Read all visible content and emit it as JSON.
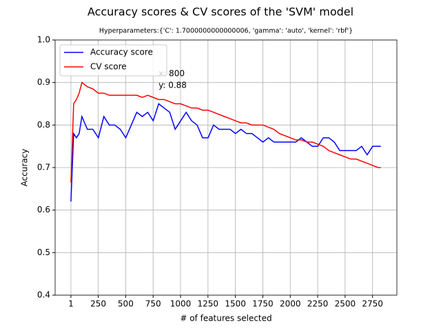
{
  "chart_data": {
    "type": "line",
    "title": "Accuracy scores & CV scores of the 'SVM' model",
    "subtitle": "Hyperparameters:{'C': 1.7000000000000006, 'gamma': 'auto', 'kernel': 'rbf'}",
    "x_label": "# of features selected",
    "y_label": "Accuracy",
    "x": [
      1,
      26,
      51,
      76,
      101,
      151,
      201,
      251,
      301,
      351,
      401,
      451,
      501,
      551,
      601,
      651,
      701,
      751,
      801,
      851,
      901,
      951,
      1001,
      1051,
      1101,
      1151,
      1201,
      1251,
      1301,
      1351,
      1401,
      1451,
      1501,
      1551,
      1601,
      1651,
      1701,
      1751,
      1801,
      1851,
      1901,
      1951,
      2001,
      2051,
      2101,
      2151,
      2201,
      2251,
      2301,
      2351,
      2401,
      2451,
      2501,
      2551,
      2601,
      2651,
      2701,
      2751,
      2801,
      2826
    ],
    "series": [
      {
        "name": "Accuracy score",
        "color": "#0000ff",
        "values": [
          0.62,
          0.78,
          0.77,
          0.78,
          0.82,
          0.79,
          0.79,
          0.77,
          0.82,
          0.8,
          0.8,
          0.79,
          0.77,
          0.8,
          0.83,
          0.82,
          0.83,
          0.81,
          0.85,
          0.84,
          0.83,
          0.79,
          0.81,
          0.83,
          0.81,
          0.8,
          0.77,
          0.77,
          0.8,
          0.79,
          0.79,
          0.79,
          0.78,
          0.79,
          0.78,
          0.78,
          0.77,
          0.76,
          0.77,
          0.76,
          0.76,
          0.76,
          0.76,
          0.76,
          0.77,
          0.76,
          0.75,
          0.75,
          0.77,
          0.77,
          0.76,
          0.74,
          0.74,
          0.74,
          0.74,
          0.75,
          0.73,
          0.75,
          0.75,
          0.75
        ]
      },
      {
        "name": "CV score",
        "color": "#ff0000",
        "values": [
          0.665,
          0.85,
          0.86,
          0.875,
          0.9,
          0.89,
          0.885,
          0.875,
          0.875,
          0.87,
          0.87,
          0.87,
          0.87,
          0.87,
          0.87,
          0.865,
          0.87,
          0.865,
          0.86,
          0.86,
          0.855,
          0.85,
          0.85,
          0.845,
          0.84,
          0.84,
          0.835,
          0.835,
          0.83,
          0.825,
          0.82,
          0.815,
          0.81,
          0.805,
          0.805,
          0.8,
          0.8,
          0.8,
          0.795,
          0.79,
          0.78,
          0.775,
          0.77,
          0.765,
          0.765,
          0.76,
          0.76,
          0.755,
          0.75,
          0.74,
          0.735,
          0.73,
          0.725,
          0.72,
          0.72,
          0.715,
          0.71,
          0.705,
          0.7,
          0.7
        ]
      }
    ],
    "xlim": [
      -143,
      2972
    ],
    "xticks": [
      1,
      250,
      500,
      750,
      1000,
      1250,
      1500,
      1750,
      2000,
      2250,
      2500,
      2750
    ],
    "ylim": [
      0.4,
      1.0
    ],
    "yticks": [
      0.4,
      0.5,
      0.6,
      0.7,
      0.8,
      0.9,
      {
        "value": 1,
        "label": "1.0"
      }
    ],
    "grid": true,
    "legend": "upper left",
    "annotation": {
      "lines": [
        "x: 800",
        "y: 0.88"
      ],
      "x": 800,
      "y": 0.88
    }
  }
}
